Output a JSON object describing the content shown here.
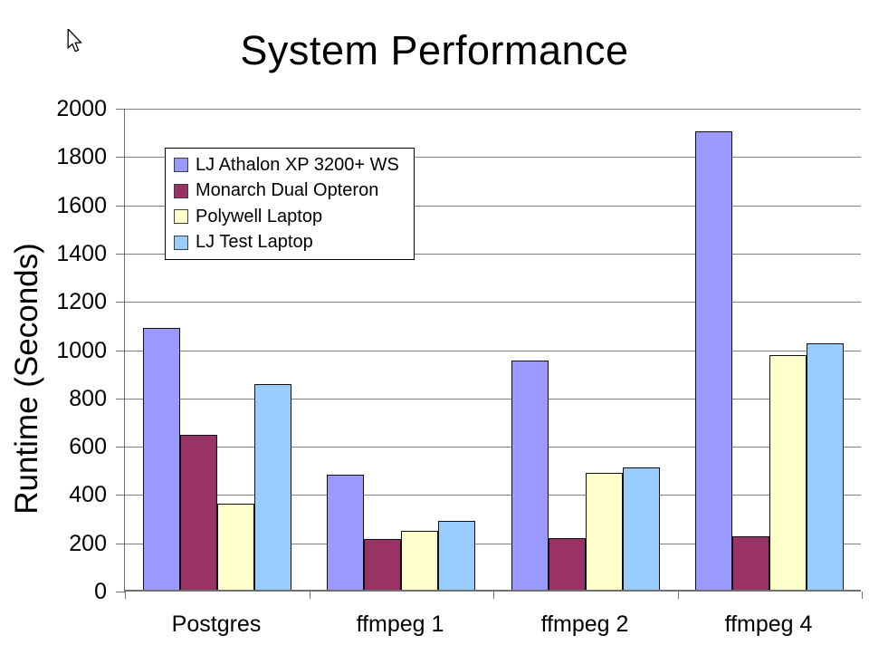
{
  "title": "System Performance",
  "icons": {
    "cursor": "mouse-arrow-cursor"
  },
  "colors": {
    "background": "#FFFFFF",
    "gridline": "#808080",
    "axis": "#707070",
    "bar_border": "#101010",
    "text": "#000000"
  },
  "chart_data": {
    "type": "bar",
    "title": "System Performance",
    "xlabel": "",
    "ylabel": "Runtime (Seconds)",
    "categories": [
      "Postgres",
      "ffmpeg 1",
      "ffmpeg 2",
      "ffmpeg 4"
    ],
    "series": [
      {
        "name": "LJ Athalon XP 3200+ WS",
        "color": "#9999FF",
        "values": [
          1085,
          475,
          950,
          1900
        ]
      },
      {
        "name": "Monarch Dual Opteron",
        "color": "#993366",
        "values": [
          640,
          210,
          215,
          220
        ]
      },
      {
        "name": "Polywell Laptop",
        "color": "#FFFFCC",
        "values": [
          355,
          245,
          485,
          970
        ]
      },
      {
        "name": "LJ Test Laptop",
        "color": "#99CCFF",
        "values": [
          850,
          285,
          505,
          1020
        ]
      }
    ],
    "ylim": [
      0,
      2000
    ],
    "ytick_step": 200,
    "ytick_labels": [
      "0",
      "200",
      "400",
      "600",
      "800",
      "1000",
      "1200",
      "1400",
      "1600",
      "1800",
      "2000"
    ],
    "grid": true,
    "legend_position": "upper-left-inside"
  }
}
